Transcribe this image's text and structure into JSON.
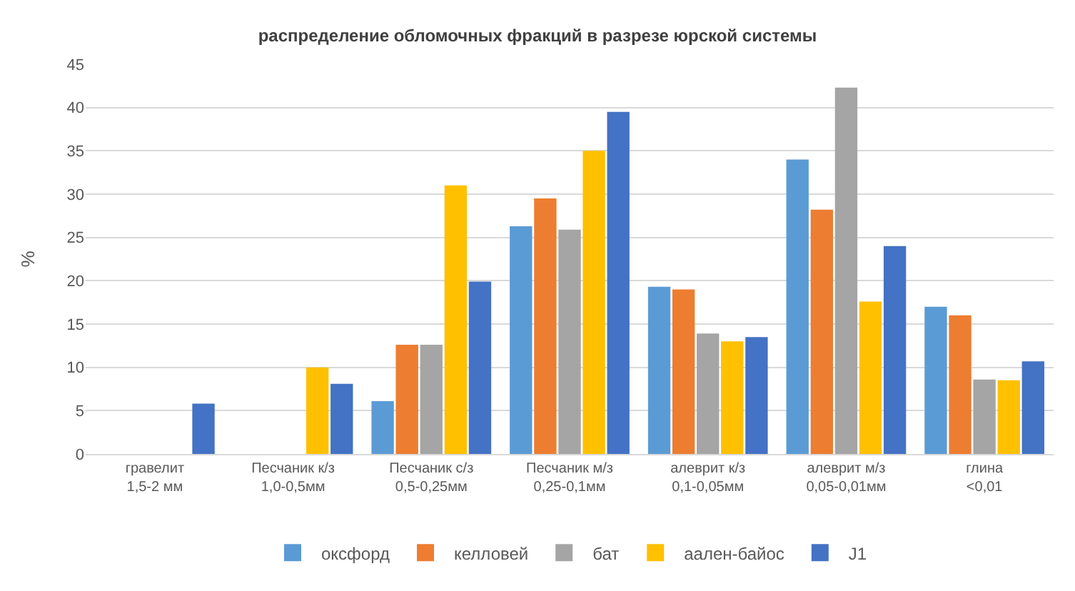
{
  "chart_data": {
    "type": "bar",
    "title": "распределение обломочных фракций в разрезе юрской системы",
    "ylabel": "%",
    "categories": [
      "гравелит\n1,5-2 мм",
      "Песчаник к/з\n1,0-0,5мм",
      "Песчаник с/з\n0,5-0,25мм",
      "Песчаник м/з\n0,25-0,1мм",
      "алеврит к/з\n0,1-0,05мм",
      "алеврит м/з\n0,05-0,01мм",
      "глина\n<0,01"
    ],
    "series": [
      {
        "name": "оксфорд",
        "color": "#5b9bd5",
        "values": [
          null,
          null,
          6.1,
          26.3,
          19.3,
          34,
          17
        ]
      },
      {
        "name": "келловей",
        "color": "#ed7d31",
        "values": [
          null,
          null,
          12.6,
          29.5,
          19,
          28.2,
          16
        ]
      },
      {
        "name": "бат",
        "color": "#a5a5a5",
        "values": [
          null,
          null,
          12.6,
          25.9,
          13.9,
          42.3,
          8.6
        ]
      },
      {
        "name": "аален-байос",
        "color": "#ffc000",
        "values": [
          null,
          10,
          31,
          35,
          13,
          17.6,
          8.5
        ]
      },
      {
        "name": "J1",
        "color": "#4472c4",
        "values": [
          5.8,
          8.1,
          19.9,
          39.5,
          13.5,
          24,
          10.7
        ]
      }
    ],
    "ylim": [
      0,
      45
    ],
    "yticks": [
      0,
      5,
      10,
      15,
      20,
      25,
      30,
      35,
      40,
      45
    ],
    "grid": "y",
    "legend": "bottom"
  }
}
